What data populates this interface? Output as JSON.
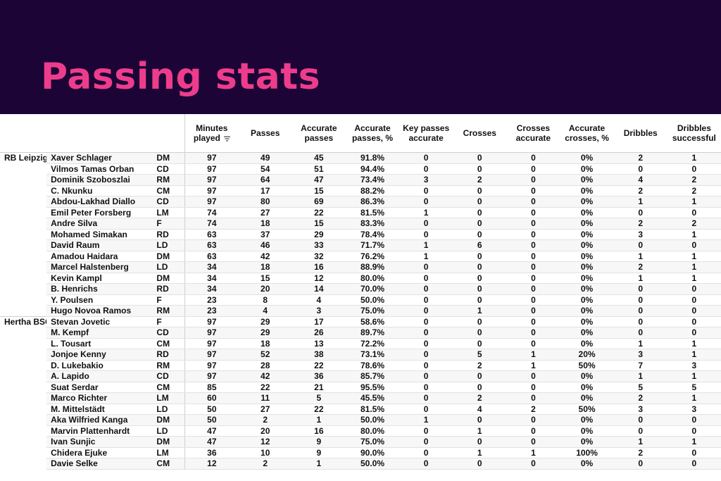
{
  "title": "Passing stats",
  "columns": [
    "Minutes played",
    "Passes",
    "Accurate passes",
    "Accurate passes, %",
    "Key passes accurate",
    "Crosses",
    "Crosses accurate",
    "Accurate crosses, %",
    "Dribbles",
    "Dribbles successful"
  ],
  "sort_icon": "sort-descending-icon",
  "teams": [
    {
      "name": "RB Leipzig",
      "players": [
        [
          "Xaver Schlager",
          "DM",
          "97",
          "49",
          "45",
          "91.8%",
          "0",
          "0",
          "0",
          "0%",
          "2",
          "1"
        ],
        [
          "Vilmos Tamas Orban",
          "CD",
          "97",
          "54",
          "51",
          "94.4%",
          "0",
          "0",
          "0",
          "0%",
          "0",
          "0"
        ],
        [
          "Dominik Szoboszlai",
          "RM",
          "97",
          "64",
          "47",
          "73.4%",
          "3",
          "2",
          "0",
          "0%",
          "4",
          "2"
        ],
        [
          "C. Nkunku",
          "CM",
          "97",
          "17",
          "15",
          "88.2%",
          "0",
          "0",
          "0",
          "0%",
          "2",
          "2"
        ],
        [
          "Abdou-Lakhad Diallo",
          "CD",
          "97",
          "80",
          "69",
          "86.3%",
          "0",
          "0",
          "0",
          "0%",
          "1",
          "1"
        ],
        [
          "Emil Peter Forsberg",
          "LM",
          "74",
          "27",
          "22",
          "81.5%",
          "1",
          "0",
          "0",
          "0%",
          "0",
          "0"
        ],
        [
          "Andre Silva",
          "F",
          "74",
          "18",
          "15",
          "83.3%",
          "0",
          "0",
          "0",
          "0%",
          "2",
          "2"
        ],
        [
          "Mohamed Simakan",
          "RD",
          "63",
          "37",
          "29",
          "78.4%",
          "0",
          "0",
          "0",
          "0%",
          "3",
          "1"
        ],
        [
          "David Raum",
          "LD",
          "63",
          "46",
          "33",
          "71.7%",
          "1",
          "6",
          "0",
          "0%",
          "0",
          "0"
        ],
        [
          "Amadou Haidara",
          "DM",
          "63",
          "42",
          "32",
          "76.2%",
          "1",
          "0",
          "0",
          "0%",
          "1",
          "1"
        ],
        [
          "Marcel Halstenberg",
          "LD",
          "34",
          "18",
          "16",
          "88.9%",
          "0",
          "0",
          "0",
          "0%",
          "2",
          "1"
        ],
        [
          "Kevin Kampl",
          "DM",
          "34",
          "15",
          "12",
          "80.0%",
          "0",
          "0",
          "0",
          "0%",
          "1",
          "1"
        ],
        [
          "B. Henrichs",
          "RD",
          "34",
          "20",
          "14",
          "70.0%",
          "0",
          "0",
          "0",
          "0%",
          "0",
          "0"
        ],
        [
          "Y. Poulsen",
          "F",
          "23",
          "8",
          "4",
          "50.0%",
          "0",
          "0",
          "0",
          "0%",
          "0",
          "0"
        ],
        [
          "Hugo Novoa Ramos",
          "RM",
          "23",
          "4",
          "3",
          "75.0%",
          "0",
          "1",
          "0",
          "0%",
          "0",
          "0"
        ]
      ]
    },
    {
      "name": "Hertha BSC",
      "players": [
        [
          "Stevan Jovetic",
          "F",
          "97",
          "29",
          "17",
          "58.6%",
          "0",
          "0",
          "0",
          "0%",
          "0",
          "0"
        ],
        [
          "M. Kempf",
          "CD",
          "97",
          "29",
          "26",
          "89.7%",
          "0",
          "0",
          "0",
          "0%",
          "0",
          "0"
        ],
        [
          "L. Tousart",
          "CM",
          "97",
          "18",
          "13",
          "72.2%",
          "0",
          "0",
          "0",
          "0%",
          "1",
          "1"
        ],
        [
          "Jonjoe Kenny",
          "RD",
          "97",
          "52",
          "38",
          "73.1%",
          "0",
          "5",
          "1",
          "20%",
          "3",
          "1"
        ],
        [
          "D. Lukebakio",
          "RM",
          "97",
          "28",
          "22",
          "78.6%",
          "0",
          "2",
          "1",
          "50%",
          "7",
          "3"
        ],
        [
          "A. Lapido",
          "CD",
          "97",
          "42",
          "36",
          "85.7%",
          "0",
          "0",
          "0",
          "0%",
          "1",
          "1"
        ],
        [
          "Suat Serdar",
          "CM",
          "85",
          "22",
          "21",
          "95.5%",
          "0",
          "0",
          "0",
          "0%",
          "5",
          "5"
        ],
        [
          "Marco Richter",
          "LM",
          "60",
          "11",
          "5",
          "45.5%",
          "0",
          "2",
          "0",
          "0%",
          "2",
          "1"
        ],
        [
          "M. Mittelstädt",
          "LD",
          "50",
          "27",
          "22",
          "81.5%",
          "0",
          "4",
          "2",
          "50%",
          "3",
          "3"
        ],
        [
          "Aka Wilfried Kanga",
          "DM",
          "50",
          "2",
          "1",
          "50.0%",
          "1",
          "0",
          "0",
          "0%",
          "0",
          "0"
        ],
        [
          "Marvin Plattenhardt",
          "LD",
          "47",
          "20",
          "16",
          "80.0%",
          "0",
          "1",
          "0",
          "0%",
          "0",
          "0"
        ],
        [
          "Ivan Sunjic",
          "DM",
          "47",
          "12",
          "9",
          "75.0%",
          "0",
          "0",
          "0",
          "0%",
          "1",
          "1"
        ],
        [
          "Chidera Ejuke",
          "LM",
          "36",
          "10",
          "9",
          "90.0%",
          "0",
          "1",
          "1",
          "100%",
          "2",
          "0"
        ],
        [
          "Davie Selke",
          "CM",
          "12",
          "2",
          "1",
          "50.0%",
          "0",
          "0",
          "0",
          "0%",
          "0",
          "0"
        ]
      ]
    }
  ]
}
